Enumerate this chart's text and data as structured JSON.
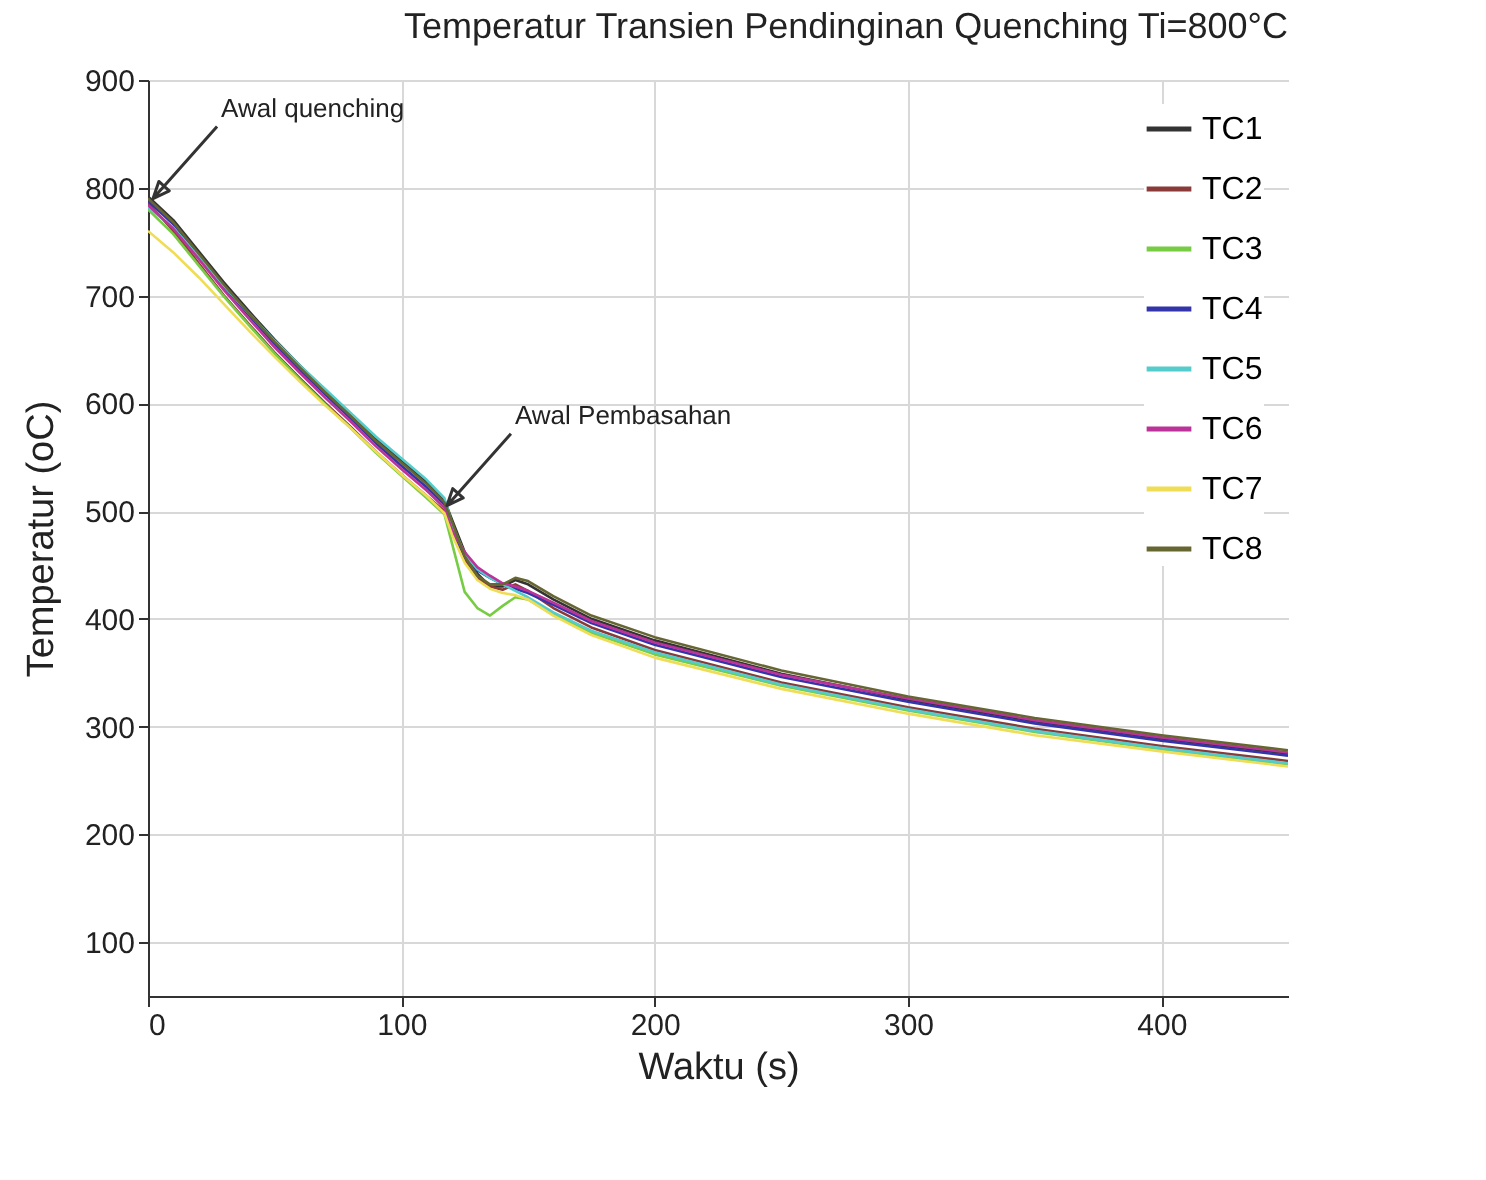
{
  "chart_data": {
    "type": "line",
    "title": "Temperatur Transien Pendinginan Quenching Ti=800°C",
    "xlabel": "Waktu (s)",
    "ylabel": "Temperatur (oC)",
    "xlim": [
      0,
      450
    ],
    "xticks": [
      0,
      100,
      200,
      300,
      400
    ],
    "ylim": [
      50,
      900
    ],
    "yticks": [
      100,
      200,
      300,
      400,
      500,
      600,
      700,
      800,
      900
    ],
    "grid": true,
    "legend": "top right",
    "x": [
      0,
      10,
      20,
      30,
      40,
      50,
      60,
      70,
      80,
      90,
      100,
      110,
      117,
      120,
      125,
      130,
      135,
      140,
      145,
      150,
      160,
      175,
      200,
      250,
      300,
      350,
      400,
      450
    ],
    "series": [
      {
        "name": "TC1",
        "color": "#333333",
        "values": [
          792,
          770,
          741,
          712,
          685,
          659,
          635,
          612,
          590,
          567,
          547,
          527,
          510,
          492,
          462,
          442,
          430,
          430,
          436,
          432,
          418,
          400,
          380,
          349,
          325,
          305,
          289,
          275
        ]
      },
      {
        "name": "TC2",
        "color": "#8b3a3a",
        "values": [
          786,
          760,
          730,
          700,
          673,
          647,
          623,
          600,
          578,
          555,
          534,
          514,
          500,
          480,
          455,
          438,
          430,
          427,
          432,
          426,
          410,
          392,
          371,
          341,
          318,
          298,
          282,
          268
        ]
      },
      {
        "name": "TC3",
        "color": "#77cc44",
        "values": [
          780,
          757,
          728,
          699,
          672,
          646,
          622,
          599,
          577,
          554,
          533,
          512,
          497,
          470,
          425,
          410,
          403,
          412,
          420,
          418,
          404,
          387,
          367,
          338,
          315,
          295,
          279,
          265
        ]
      },
      {
        "name": "TC4",
        "color": "#3333aa",
        "values": [
          788,
          766,
          737,
          708,
          681,
          655,
          631,
          608,
          586,
          563,
          542,
          522,
          506,
          485,
          458,
          445,
          438,
          432,
          428,
          424,
          413,
          396,
          376,
          346,
          323,
          303,
          287,
          273
        ]
      },
      {
        "name": "TC5",
        "color": "#55cccc",
        "values": [
          782,
          763,
          736,
          709,
          683,
          658,
          635,
          613,
          591,
          569,
          549,
          529,
          512,
          488,
          460,
          446,
          438,
          432,
          426,
          420,
          406,
          389,
          369,
          339,
          316,
          296,
          280,
          266
        ]
      },
      {
        "name": "TC6",
        "color": "#bb3399",
        "values": [
          784,
          762,
          734,
          705,
          678,
          652,
          628,
          605,
          583,
          560,
          539,
          519,
          503,
          482,
          462,
          448,
          440,
          433,
          430,
          426,
          415,
          398,
          378,
          348,
          326,
          306,
          290,
          276
        ]
      },
      {
        "name": "TC7",
        "color": "#eedd55",
        "values": [
          760,
          740,
          717,
          692,
          667,
          643,
          620,
          598,
          577,
          555,
          534,
          514,
          498,
          478,
          452,
          436,
          428,
          424,
          422,
          418,
          403,
          385,
          364,
          335,
          312,
          292,
          277,
          263
        ]
      },
      {
        "name": "TC8",
        "color": "#666633",
        "values": [
          790,
          768,
          739,
          710,
          683,
          657,
          633,
          610,
          588,
          565,
          545,
          525,
          508,
          490,
          458,
          440,
          432,
          432,
          438,
          435,
          421,
          403,
          383,
          352,
          328,
          308,
          292,
          278
        ]
      }
    ],
    "annotations": [
      {
        "text": "Awal quenching",
        "x": 2,
        "y": 790
      },
      {
        "text": "Awal Pembasahan",
        "x": 118,
        "y": 505
      }
    ]
  }
}
